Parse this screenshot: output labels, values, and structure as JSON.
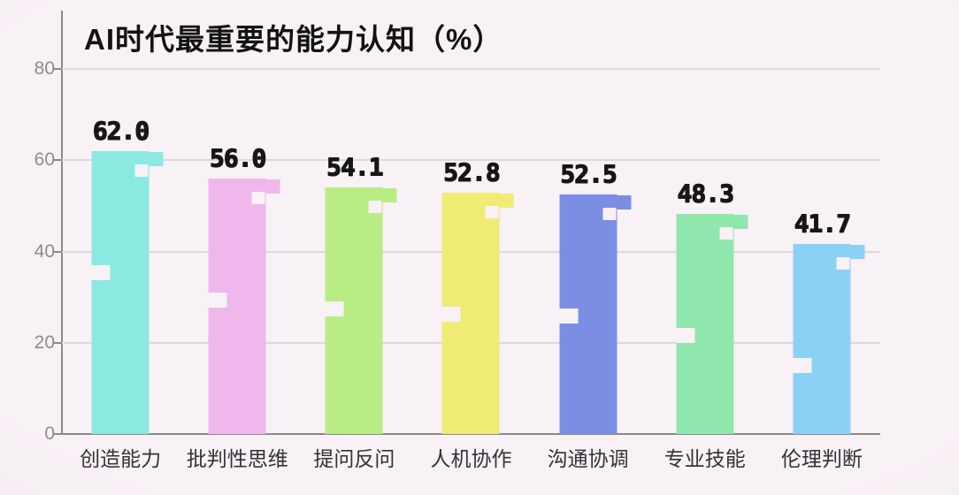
{
  "page": {
    "background": "#f8f1f6"
  },
  "chart_data": {
    "type": "bar",
    "title": "AI时代最重要的能力认知（%）",
    "categories": [
      "创造能力",
      "批判性思维",
      "提问反问",
      "人机协作",
      "沟通协调",
      "专业技能",
      "伦理判断"
    ],
    "values": [
      62.0,
      56.0,
      54.1,
      52.8,
      52.5,
      48.3,
      41.7
    ],
    "value_labels": [
      "62.0",
      "56.0",
      "54.1",
      "52.8",
      "52.5",
      "48.3",
      "41.7"
    ],
    "bar_colors": [
      "#8aeae2",
      "#f0b7ec",
      "#b9ec85",
      "#efeb75",
      "#7b8ee4",
      "#90e7ae",
      "#8ad1f5"
    ],
    "xlabel": "",
    "ylabel": "",
    "ylim": [
      0,
      80
    ],
    "yticks": [
      80,
      60,
      40,
      20,
      0
    ],
    "ytick_labels": [
      "80",
      "60",
      "40",
      "20",
      "0"
    ],
    "grid": true,
    "legend_position": "none",
    "style": "pixel-art"
  },
  "style": {
    "axis_color": "#8e888c",
    "grid_color": "#ded7db",
    "ytick_label_color": "#908a8e",
    "xtick_label_color": "#343236",
    "value_label_color": "#161616",
    "title_color": "#121212"
  }
}
